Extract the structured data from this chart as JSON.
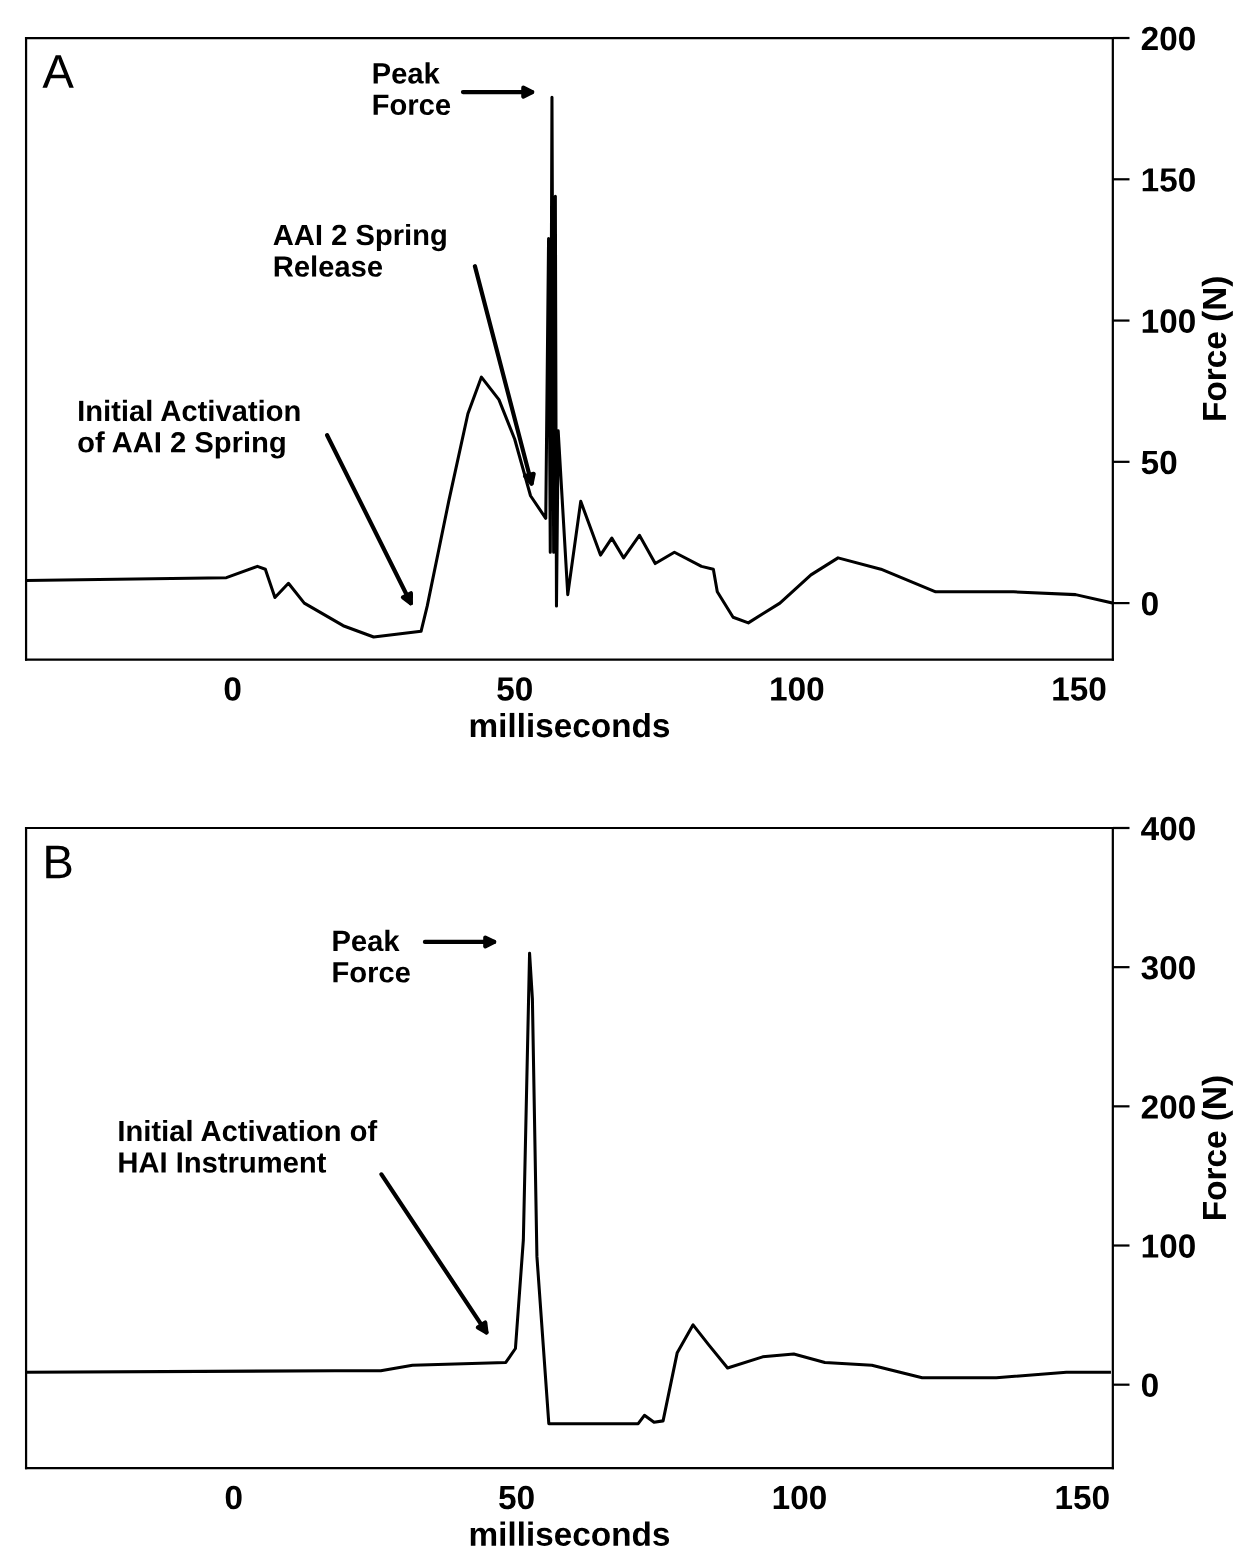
{
  "chart_data": [
    {
      "type": "line",
      "title": "A",
      "xlabel": "milliseconds",
      "ylabel": "Force (N)",
      "color": "#000000",
      "x": [
        -36.6,
        -1.1,
        4.4,
        5.8,
        7.5,
        9.9,
        12.7,
        19.6,
        25,
        33.4,
        34.5,
        38.3,
        41.7,
        44.1,
        47.2,
        50,
        52.8,
        55.5,
        56,
        56.3,
        56.6,
        56.9,
        57.2,
        57.4,
        57.7,
        59.4,
        61.7,
        65.2,
        67.2,
        69.3,
        72.1,
        74.9,
        78.3,
        83.1,
        85.2,
        85.9,
        88.7,
        91.4,
        97,
        102.5,
        107.3,
        114.9,
        124.6,
        138.4,
        149.4,
        156
      ],
      "values": [
        8,
        9,
        13,
        12,
        2,
        7,
        0,
        -8,
        -12,
        -10,
        -1,
        36,
        67,
        80,
        72,
        58,
        38,
        30,
        129,
        18,
        179,
        18,
        144,
        -1,
        61,
        3,
        36,
        17,
        23,
        16,
        24,
        14,
        18,
        13,
        12,
        4,
        -5,
        -7,
        0,
        10,
        16,
        12,
        4,
        4,
        3,
        0
      ],
      "xlim": [
        -36.6,
        156
      ],
      "ylim": [
        -20,
        200
      ],
      "xticks": [
        0,
        50,
        100,
        150
      ],
      "yticks": [
        0,
        50,
        100,
        150,
        200
      ],
      "annotations": [
        "Initial Activation\nof AAI 2 Spring",
        {
          "text": "AAI 2 Spring\nRelease",
          "x": 53.2,
          "y": 40.7
        },
        "Peak\nForce"
      ]
    },
    {
      "type": "line",
      "title": "B",
      "xlabel": "milliseconds",
      "ylabel": "Force (N)",
      "color": "#000000",
      "x": [
        -36.7,
        17.9,
        26,
        31.6,
        48.1,
        49.8,
        51.2,
        52.3,
        52.8,
        53.6,
        55.7,
        71.5,
        72.6,
        74.3,
        75.9,
        78.4,
        81.2,
        83.9,
        87.3,
        93.5,
        99,
        104.5,
        112.8,
        121.7,
        134.8,
        147.2,
        154.8
      ],
      "values": [
        9,
        10,
        10,
        14,
        16,
        26,
        104,
        310,
        277,
        92,
        -28,
        -28,
        -22,
        -27,
        -26,
        23,
        43,
        29,
        12,
        20,
        22,
        16,
        14,
        5,
        5,
        9,
        9
      ],
      "xlim": [
        -36.7,
        155.4
      ],
      "ylim": [
        -60,
        400
      ],
      "xticks": [
        0,
        50,
        100,
        150
      ],
      "yticks": [
        0,
        100,
        200,
        300,
        400
      ],
      "annotations": [
        "Initial Activation of\nHAI Instrument",
        "Peak\nForce"
      ]
    }
  ]
}
